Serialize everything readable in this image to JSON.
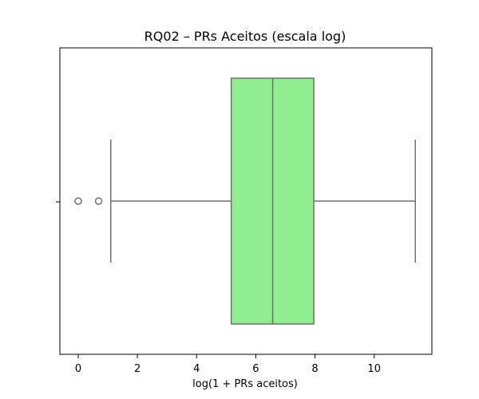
{
  "chart_data": {
    "type": "boxplot",
    "title": "RQ02 – PRs Aceitos (escala log)",
    "xlabel": "log(1 + PRs aceitos)",
    "ylabel": "",
    "xlim": [
      -0.62,
      11.95
    ],
    "xticks": [
      0,
      2,
      4,
      6,
      8,
      10
    ],
    "xtick_labels": [
      "0",
      "2",
      "4",
      "6",
      "8",
      "10"
    ],
    "orientation": "horizontal",
    "grid": false,
    "box": {
      "whisker_low": 1.1,
      "q1": 5.17,
      "median": 6.57,
      "q3": 7.96,
      "whisker_high": 11.39,
      "outliers": [
        0.0,
        0.69
      ]
    },
    "colors": {
      "box_fill": "#90ee90",
      "line": "#707070",
      "outlier": "#707070"
    }
  }
}
